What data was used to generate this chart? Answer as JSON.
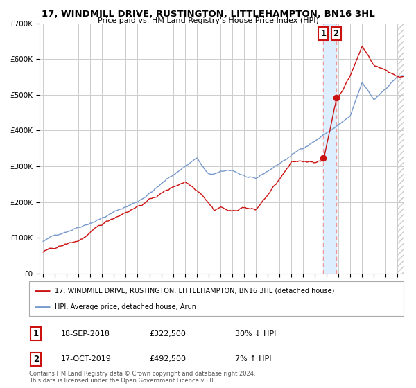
{
  "title": "17, WINDMILL DRIVE, RUSTINGTON, LITTLEHAMPTON, BN16 3HL",
  "subtitle": "Price paid vs. HM Land Registry's House Price Index (HPI)",
  "legend_line1": "17, WINDMILL DRIVE, RUSTINGTON, LITTLEHAMPTON, BN16 3HL (detached house)",
  "legend_line2": "HPI: Average price, detached house, Arun",
  "annotation1": {
    "label": "1",
    "date": "18-SEP-2018",
    "price": "£322,500",
    "pct": "30% ↓ HPI"
  },
  "annotation2": {
    "label": "2",
    "date": "17-OCT-2019",
    "price": "£492,500",
    "pct": "7% ↑ HPI"
  },
  "footer": "Contains HM Land Registry data © Crown copyright and database right 2024.\nThis data is licensed under the Open Government Licence v3.0.",
  "hpi_color": "#7799cc",
  "price_color": "#cc1111",
  "background_color": "#ffffff",
  "plot_bg_color": "#ffffff",
  "grid_color": "#cccccc",
  "annotation_box_color": "#cc1111",
  "vertical_line_color": "#ee9999",
  "highlight_color": "#ddeeff",
  "sale1_x": 2018.72,
  "sale1_y": 322500,
  "sale2_x": 2019.79,
  "sale2_y": 492500,
  "ylim": [
    0,
    700000
  ],
  "xlim": [
    1994.7,
    2025.5
  ],
  "yticks": [
    0,
    100000,
    200000,
    300000,
    400000,
    500000,
    600000,
    700000
  ],
  "ytick_labels": [
    "£0",
    "£100K",
    "£200K",
    "£300K",
    "£400K",
    "£500K",
    "£600K",
    "£700K"
  ],
  "xticks": [
    1995,
    1996,
    1997,
    1998,
    1999,
    2000,
    2001,
    2002,
    2003,
    2004,
    2005,
    2006,
    2007,
    2008,
    2009,
    2010,
    2011,
    2012,
    2013,
    2014,
    2015,
    2016,
    2017,
    2018,
    2019,
    2020,
    2021,
    2022,
    2023,
    2024,
    2025
  ]
}
